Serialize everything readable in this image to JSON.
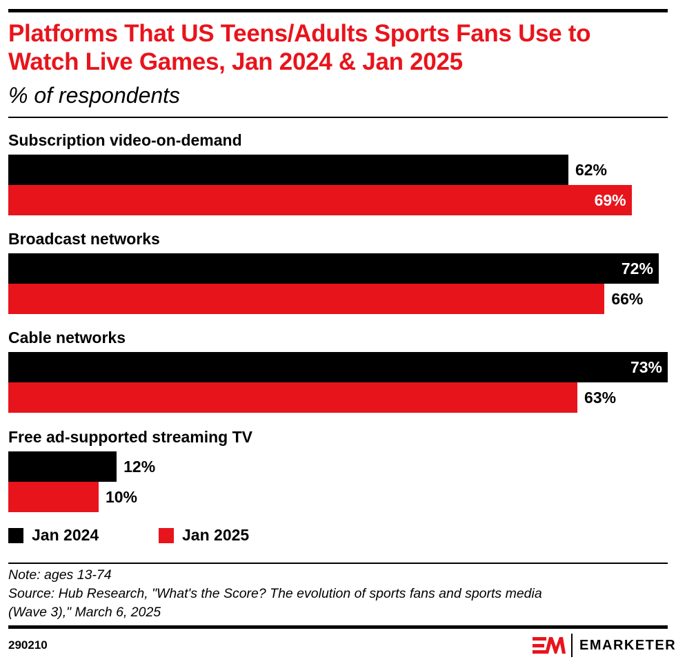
{
  "title": "Platforms That US Teens/Adults Sports Fans Use to Watch Live Games, Jan 2024 & Jan 2025",
  "subtitle": "% of respondents",
  "chart_data": {
    "type": "bar",
    "orientation": "horizontal",
    "categories": [
      "Subscription video-on-demand",
      "Broadcast networks",
      "Cable networks",
      "Free ad-supported streaming TV"
    ],
    "series": [
      {
        "name": "Jan 2024",
        "color": "#000000",
        "values": [
          62,
          72,
          73,
          12
        ]
      },
      {
        "name": "Jan 2025",
        "color": "#e8141c",
        "values": [
          69,
          66,
          63,
          10
        ]
      }
    ],
    "unit": "%",
    "legend": "bottom-left",
    "grid": false
  },
  "note": "Note: ages 13-74",
  "source_line1": "Source: Hub Research, \"What's the Score? The evolution of sports fans and sports media",
  "source_line2": "(Wave 3),\" March 6, 2025",
  "chart_id": "290210",
  "brand": "EMARKETER",
  "logo_text": "EM"
}
